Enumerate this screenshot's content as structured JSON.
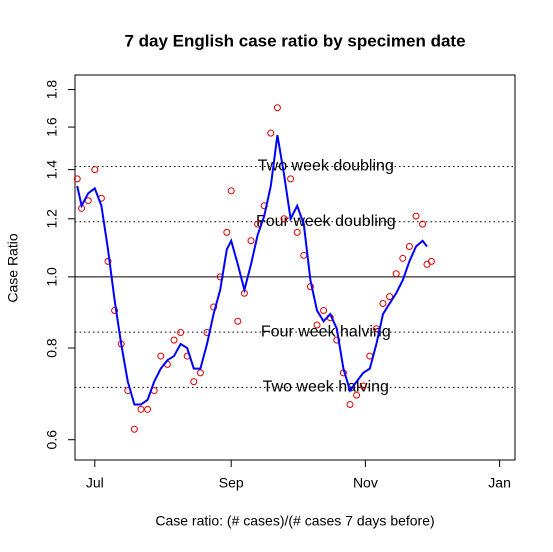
{
  "chart_data": {
    "type": "line",
    "title": "7 day English case ratio by specimen date",
    "xlabel": "Case ratio: (# cases)/(# cases 7 days before)",
    "ylabel": "Case Ratio",
    "ylog": true,
    "xlim": [
      -9,
      191
    ],
    "xticks": [
      {
        "value": 0,
        "label": "Jul"
      },
      {
        "value": 62,
        "label": "Sep"
      },
      {
        "value": 123,
        "label": "Nov"
      },
      {
        "value": 184,
        "label": "Jan"
      }
    ],
    "ylim": [
      0.563,
      1.884
    ],
    "yticks": [
      0.6,
      0.8,
      {
        "value": 1.0,
        "label": "1.0"
      },
      1.2,
      1.4,
      1.6,
      1.8
    ],
    "hlines": [
      {
        "value": 1.414,
        "label": "Two week doubling",
        "style": "dotted"
      },
      {
        "value": 1.189,
        "label": "Four week doubling",
        "style": "dotted"
      },
      {
        "value": 1,
        "style": "solid"
      },
      {
        "value": 0.841,
        "label": "Four week halving",
        "style": "dotted"
      },
      {
        "value": 0.707,
        "label": "Two week halving",
        "style": "dotted"
      }
    ],
    "label_x": 105,
    "series": [
      {
        "color": "#0000ff",
        "style": "line",
        "x": [
          -8,
          -6,
          -3,
          0,
          3,
          6,
          9,
          12,
          15,
          18,
          21,
          24,
          27,
          30,
          33,
          36,
          39,
          42,
          45,
          48,
          51,
          54,
          57,
          60,
          62,
          65,
          68,
          71,
          74,
          77,
          80,
          83,
          86,
          89,
          92,
          95,
          98,
          101,
          104,
          107,
          110,
          113,
          116,
          119,
          122,
          125,
          128,
          131,
          134,
          137,
          140,
          143,
          146,
          149,
          151
        ],
        "values": [
          1.33,
          1.25,
          1.3,
          1.32,
          1.25,
          1.09,
          0.93,
          0.81,
          0.72,
          0.67,
          0.67,
          0.68,
          0.72,
          0.75,
          0.77,
          0.78,
          0.81,
          0.8,
          0.75,
          0.75,
          0.81,
          0.89,
          0.96,
          1.09,
          1.12,
          1.04,
          0.96,
          1.04,
          1.14,
          1.21,
          1.33,
          1.56,
          1.38,
          1.2,
          1.25,
          1.18,
          0.99,
          0.9,
          0.87,
          0.89,
          0.85,
          0.75,
          0.7,
          0.72,
          0.74,
          0.75,
          0.81,
          0.89,
          0.92,
          0.95,
          0.99,
          1.05,
          1.1,
          1.12,
          1.1
        ]
      },
      {
        "color": "#dd0000",
        "style": "points",
        "x": [
          -8,
          -6,
          -3,
          0,
          3,
          6,
          9,
          12,
          15,
          18,
          21,
          24,
          27,
          30,
          33,
          36,
          39,
          42,
          45,
          48,
          51,
          54,
          57,
          60,
          62,
          65,
          68,
          71,
          74,
          77,
          80,
          83,
          86,
          89,
          92,
          95,
          98,
          101,
          104,
          107,
          110,
          113,
          116,
          119,
          122,
          125,
          128,
          131,
          134,
          137,
          140,
          143,
          146,
          149,
          151,
          153
        ],
        "values": [
          1.36,
          1.24,
          1.27,
          1.4,
          1.28,
          1.05,
          0.9,
          0.81,
          0.7,
          0.62,
          0.66,
          0.66,
          0.7,
          0.78,
          0.76,
          0.82,
          0.84,
          0.78,
          0.72,
          0.74,
          0.84,
          0.91,
          1.0,
          1.15,
          1.31,
          0.87,
          0.95,
          1.12,
          1.18,
          1.25,
          1.57,
          1.7,
          1.2,
          1.36,
          1.15,
          1.07,
          0.97,
          0.86,
          0.9,
          0.88,
          0.82,
          0.74,
          0.67,
          0.69,
          0.71,
          0.78,
          0.85,
          0.92,
          0.94,
          1.01,
          1.06,
          1.1,
          1.21,
          1.18,
          1.04,
          1.05
        ]
      }
    ]
  }
}
